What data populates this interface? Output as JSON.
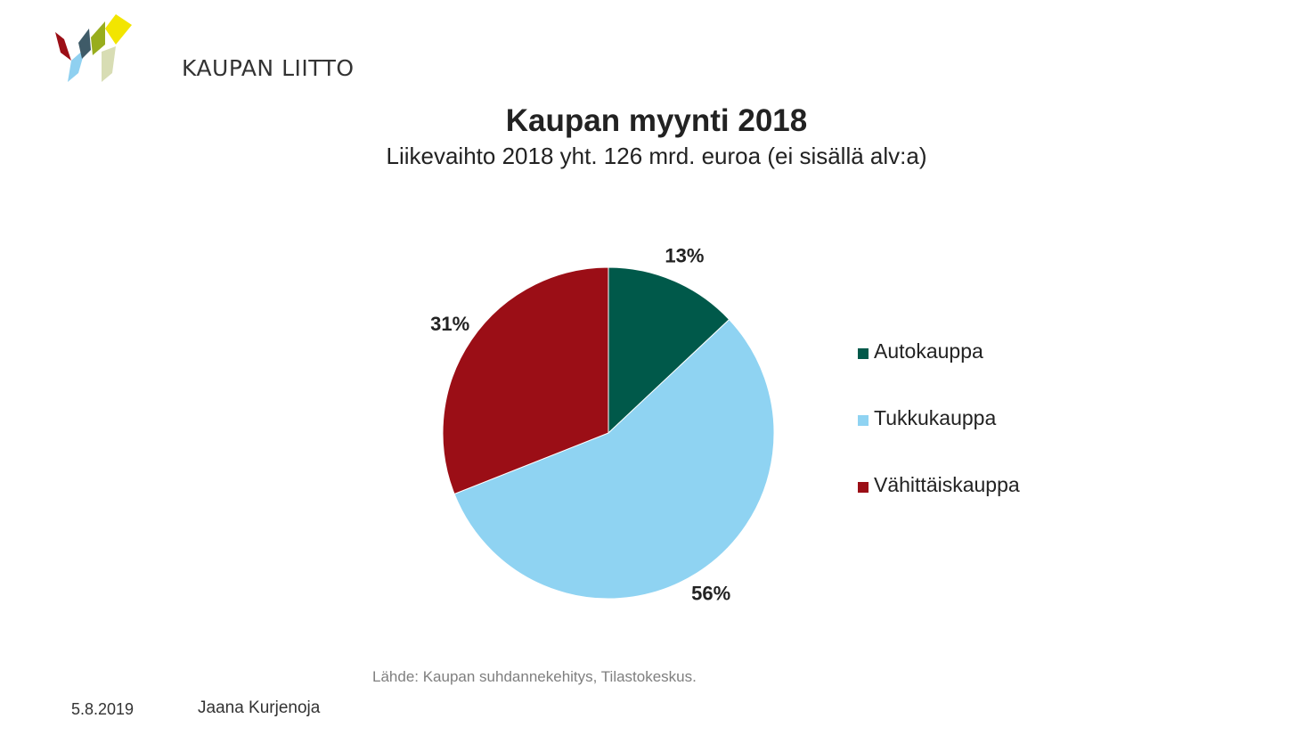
{
  "brand": {
    "name": "KAUPAN LIITTO",
    "logo_colors": [
      "#9b0e16",
      "#8fd0f0",
      "#3f5b68",
      "#98ad1d",
      "#f2e500",
      "#d8ddb4"
    ]
  },
  "footer": {
    "source": "Lähde: Kaupan suhdannekehitys, Tilastokeskus.",
    "date": "5.8.2019",
    "author": "Jaana Kurjenoja"
  },
  "chart_data": {
    "type": "pie",
    "title": "Kaupan myynti 2018",
    "subtitle": "Liikevaihto 2018 yht. 126 mrd. euroa (ei sisällä alv:a)",
    "legend_position": "right",
    "slices": [
      {
        "name": "Autokauppa",
        "value": 13,
        "label": "13%",
        "color": "#00594a"
      },
      {
        "name": "Tukkukauppa",
        "value": 56,
        "label": "56%",
        "color": "#8fd3f2"
      },
      {
        "name": "Vähittäiskauppa",
        "value": 31,
        "label": "31%",
        "color": "#9b0e16"
      }
    ]
  }
}
